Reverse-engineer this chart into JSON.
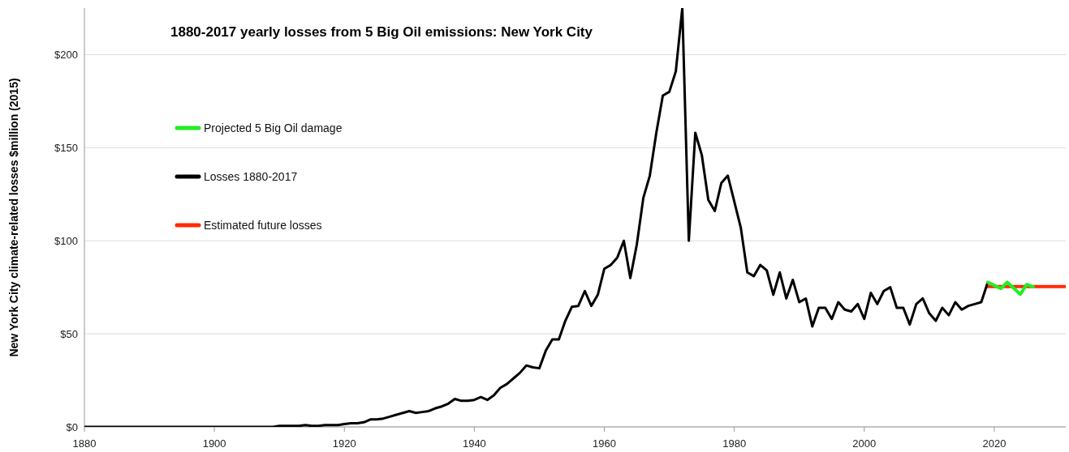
{
  "chart_data": {
    "type": "line",
    "title": "1880-2017 yearly losses from 5 Big Oil emissions: New York City",
    "ylabel": "New York City climate-related losses $million (2015)",
    "xlim": [
      1880,
      2031
    ],
    "xticks": [
      1880,
      1900,
      1920,
      1940,
      1960,
      1980,
      2000,
      2020
    ],
    "ylim": [
      0,
      225
    ],
    "yticks": [
      {
        "value": 0,
        "label": "$0"
      },
      {
        "value": 50,
        "label": "$50"
      },
      {
        "value": 100,
        "label": "$100"
      },
      {
        "value": 150,
        "label": "$150"
      },
      {
        "value": 200,
        "label": "$200"
      }
    ],
    "grid": "y",
    "legend": "top left",
    "line_style": "solid",
    "series": [
      {
        "name": "Projected 5 Big Oil damage",
        "color": "#22ee22",
        "x": [
          2019,
          2020,
          2021,
          2022,
          2023,
          2024,
          2025,
          2026
        ],
        "values": [
          77.7,
          76,
          74.3,
          77.7,
          74.5,
          71.2,
          76.5,
          75.2
        ]
      },
      {
        "name": "Losses 1880-2017",
        "color": "#000000",
        "x": [
          1880,
          1881,
          1882,
          1883,
          1884,
          1885,
          1886,
          1887,
          1888,
          1889,
          1890,
          1891,
          1892,
          1893,
          1894,
          1895,
          1896,
          1897,
          1898,
          1899,
          1900,
          1901,
          1902,
          1903,
          1904,
          1905,
          1906,
          1907,
          1908,
          1909,
          1910,
          1911,
          1912,
          1913,
          1914,
          1915,
          1916,
          1917,
          1918,
          1919,
          1920,
          1921,
          1922,
          1923,
          1924,
          1925,
          1926,
          1927,
          1928,
          1929,
          1930,
          1931,
          1932,
          1933,
          1934,
          1935,
          1936,
          1937,
          1938,
          1939,
          1940,
          1941,
          1942,
          1943,
          1944,
          1945,
          1946,
          1947,
          1948,
          1949,
          1950,
          1951,
          1952,
          1953,
          1954,
          1955,
          1956,
          1957,
          1958,
          1959,
          1960,
          1961,
          1962,
          1963,
          1964,
          1965,
          1966,
          1967,
          1968,
          1969,
          1970,
          1971,
          1972,
          1973,
          1974,
          1975,
          1976,
          1977,
          1978,
          1979,
          1980,
          1981,
          1982,
          1983,
          1984,
          1985,
          1986,
          1987,
          1988,
          1989,
          1990,
          1991,
          1992,
          1993,
          1994,
          1995,
          1996,
          1997,
          1998,
          1999,
          2000,
          2001,
          2002,
          2003,
          2004,
          2005,
          2006,
          2007,
          2008,
          2009,
          2010,
          2011,
          2012,
          2013,
          2014,
          2015,
          2016,
          2017,
          2018,
          2019
        ],
        "values": [
          0,
          0,
          0,
          0,
          0,
          0,
          0,
          0,
          0,
          0,
          0,
          0,
          0,
          0,
          0,
          0,
          0,
          0,
          0,
          0,
          0,
          0,
          0,
          0,
          0,
          0,
          0,
          0,
          0,
          0,
          0.5,
          0.5,
          0.5,
          0.5,
          1,
          0.5,
          0.5,
          1,
          1,
          1,
          1.5,
          2,
          2,
          2.5,
          4,
          4,
          4.5,
          5.5,
          6.5,
          7.5,
          8.5,
          7.5,
          8,
          8.5,
          10,
          11,
          12.5,
          15,
          14,
          14,
          14.5,
          16,
          14.5,
          17,
          21,
          23,
          26,
          29,
          33,
          32,
          31.5,
          41,
          47,
          47,
          57,
          64.5,
          65,
          73,
          65,
          71,
          85,
          87,
          91,
          100,
          80,
          98,
          123,
          135,
          158,
          178,
          180,
          191,
          225,
          100,
          158,
          146,
          122,
          116,
          131,
          135,
          121,
          107,
          83,
          81,
          87,
          84,
          71,
          83,
          69,
          79,
          67,
          69,
          54,
          64,
          64,
          58,
          67,
          63,
          62,
          66,
          58,
          72,
          66,
          73,
          75,
          64,
          64,
          55,
          66,
          69,
          61,
          57,
          64,
          60,
          67,
          63,
          65,
          66,
          67,
          77.7
        ]
      },
      {
        "name": "Estimated future losses",
        "color": "#ff2a00",
        "x": [
          2019,
          2031
        ],
        "values": [
          75.4,
          75.4
        ]
      }
    ]
  }
}
